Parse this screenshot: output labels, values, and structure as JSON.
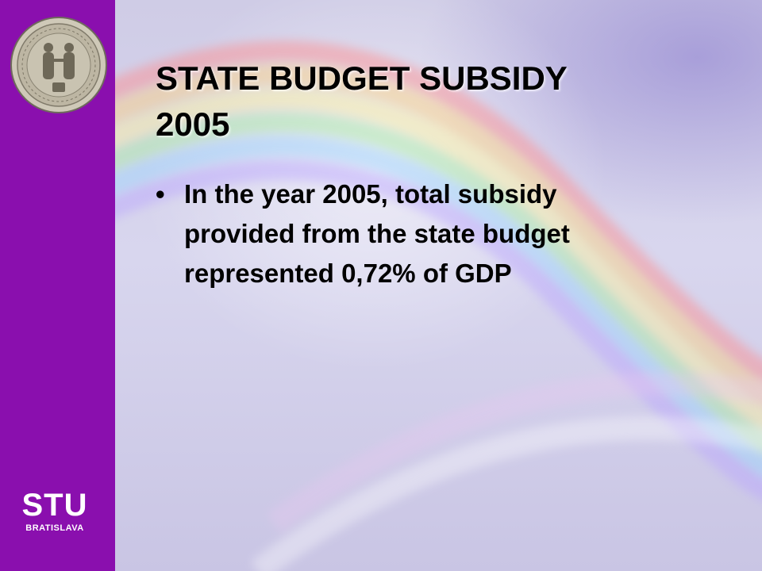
{
  "sidebar": {
    "brand_name": "STU",
    "brand_subtitle": "BRATISLAVA",
    "background_color": "#8a0fae",
    "seal_icon": "university-seal-icon"
  },
  "slide": {
    "title_lines": [
      "STATE BUDGET SUBSIDY",
      "2005"
    ],
    "bullets": [
      {
        "lines": [
          "In the year 2005, total subsidy",
          "provided from the state budget",
          "represented 0,72% of GDP"
        ]
      }
    ]
  }
}
